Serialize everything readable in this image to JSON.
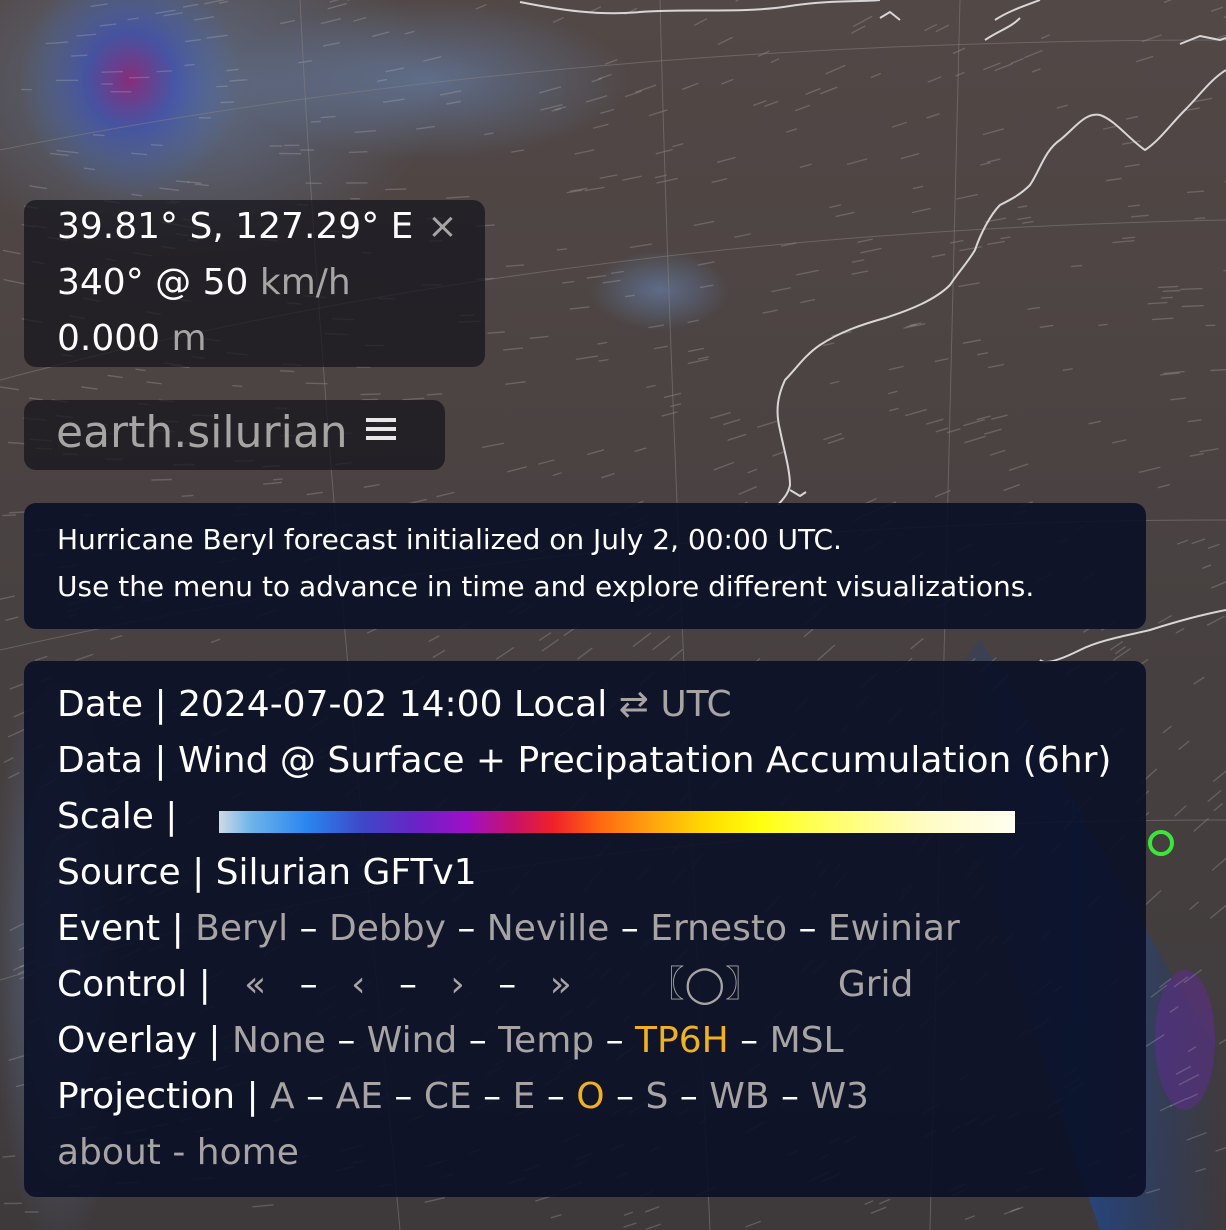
{
  "location": {
    "coordinates": "39.81° S, 127.29° E",
    "close_icon": "×",
    "wind_value": "340° @ 50",
    "wind_unit": "km/h",
    "precip_value": "0.000",
    "precip_unit": "m"
  },
  "brand": {
    "title": "earth.silurian",
    "menu_icon": "hamburger-menu-icon"
  },
  "notice": {
    "line1": "Hurricane Beryl forecast initialized on July 2, 00:00 UTC.",
    "line2": "Use the menu to advance in time and explore different visualizations."
  },
  "menu": {
    "date": {
      "label": "Date |",
      "value": "2024-07-02 14:00 Local",
      "swap_icon": "⇄",
      "utc": "UTC"
    },
    "data": {
      "label": "Data |",
      "value": "Wind @ Surface + Precipatation Accumulation (6hr)"
    },
    "scale": {
      "label": "Scale |"
    },
    "source": {
      "label": "Source |",
      "value": "Silurian GFTv1"
    },
    "event": {
      "label": "Event |",
      "items": [
        "Beryl",
        "Debby",
        "Neville",
        "Ernesto",
        "Ewiniar"
      ]
    },
    "control": {
      "label": "Control |",
      "first": "«",
      "prev": "‹",
      "next": "›",
      "last": "»",
      "locate": "〖◯〗",
      "grid": "Grid"
    },
    "overlay": {
      "label": "Overlay |",
      "items": [
        "None",
        "Wind",
        "Temp",
        "TP6H",
        "MSL"
      ],
      "active_index": 3
    },
    "projection": {
      "label": "Projection |",
      "items": [
        "A",
        "AE",
        "CE",
        "E",
        "O",
        "S",
        "WB",
        "W3"
      ],
      "active_index": 4
    },
    "footer": {
      "about": "about",
      "home": "home"
    }
  },
  "colors": {
    "accent": "#f0b020",
    "dim_text": "#a8a4a3",
    "coastline": "#d8d6d6",
    "marker": "#39e639",
    "panel_dark": "#0a1026"
  }
}
